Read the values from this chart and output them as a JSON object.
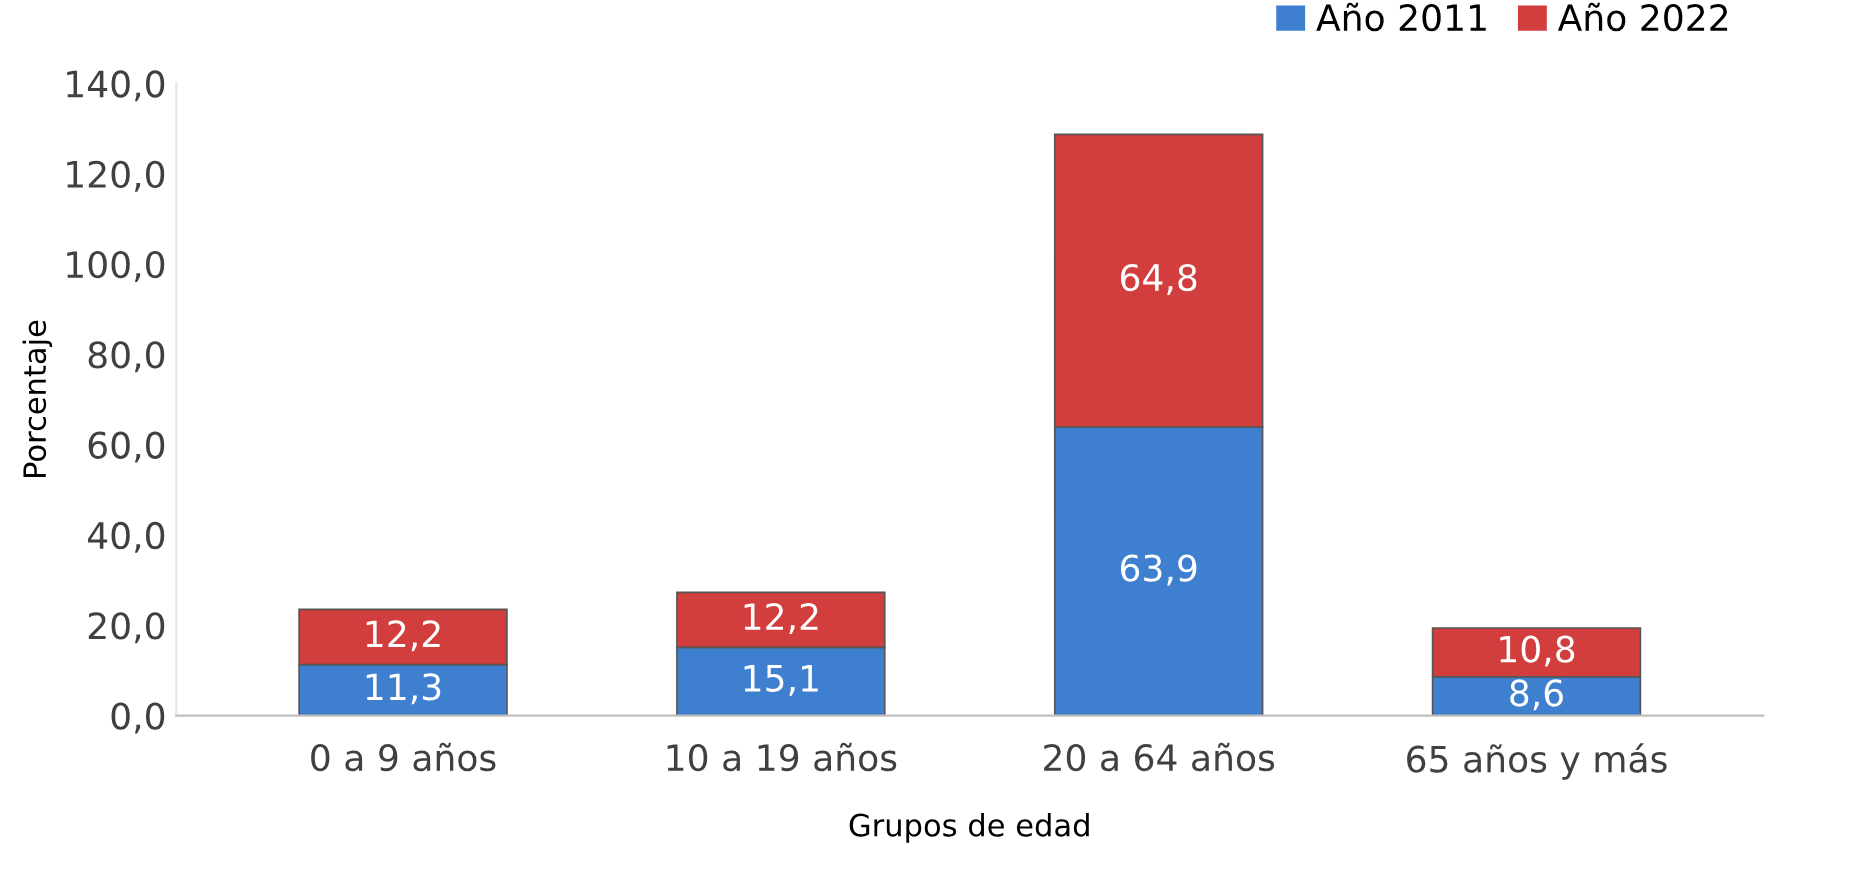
{
  "chart_data": {
    "type": "bar",
    "stacked": true,
    "xlabel": "Grupos de edad",
    "ylabel": "Porcentaje",
    "categories": [
      "0 a 9 años",
      "10 a 19 años",
      "20 a 64 años",
      "65 años y más"
    ],
    "series": [
      {
        "name": "Año 2011",
        "color": "#3f7fd0",
        "values": [
          11.3,
          15.1,
          63.9,
          8.6
        ],
        "value_labels": [
          "11,3",
          "15,1",
          "63,9",
          "8,6"
        ]
      },
      {
        "name": "Año 2022",
        "color": "#d23d3d",
        "values": [
          12.2,
          12.2,
          64.8,
          10.8
        ],
        "value_labels": [
          "12,2",
          "12,2",
          "64,8",
          "10,8"
        ]
      }
    ],
    "ylim": [
      0,
      140
    ],
    "yticks": [
      {
        "value": 0,
        "label": "0,0"
      },
      {
        "value": 20,
        "label": "20,0"
      },
      {
        "value": 40,
        "label": "40,0"
      },
      {
        "value": 60,
        "label": "60,0"
      },
      {
        "value": 80,
        "label": "80,0"
      },
      {
        "value": 100,
        "label": "100,0"
      },
      {
        "value": 120,
        "label": "120,0"
      },
      {
        "value": 140,
        "label": "140,0"
      }
    ],
    "grid": false,
    "legend": "top right"
  }
}
